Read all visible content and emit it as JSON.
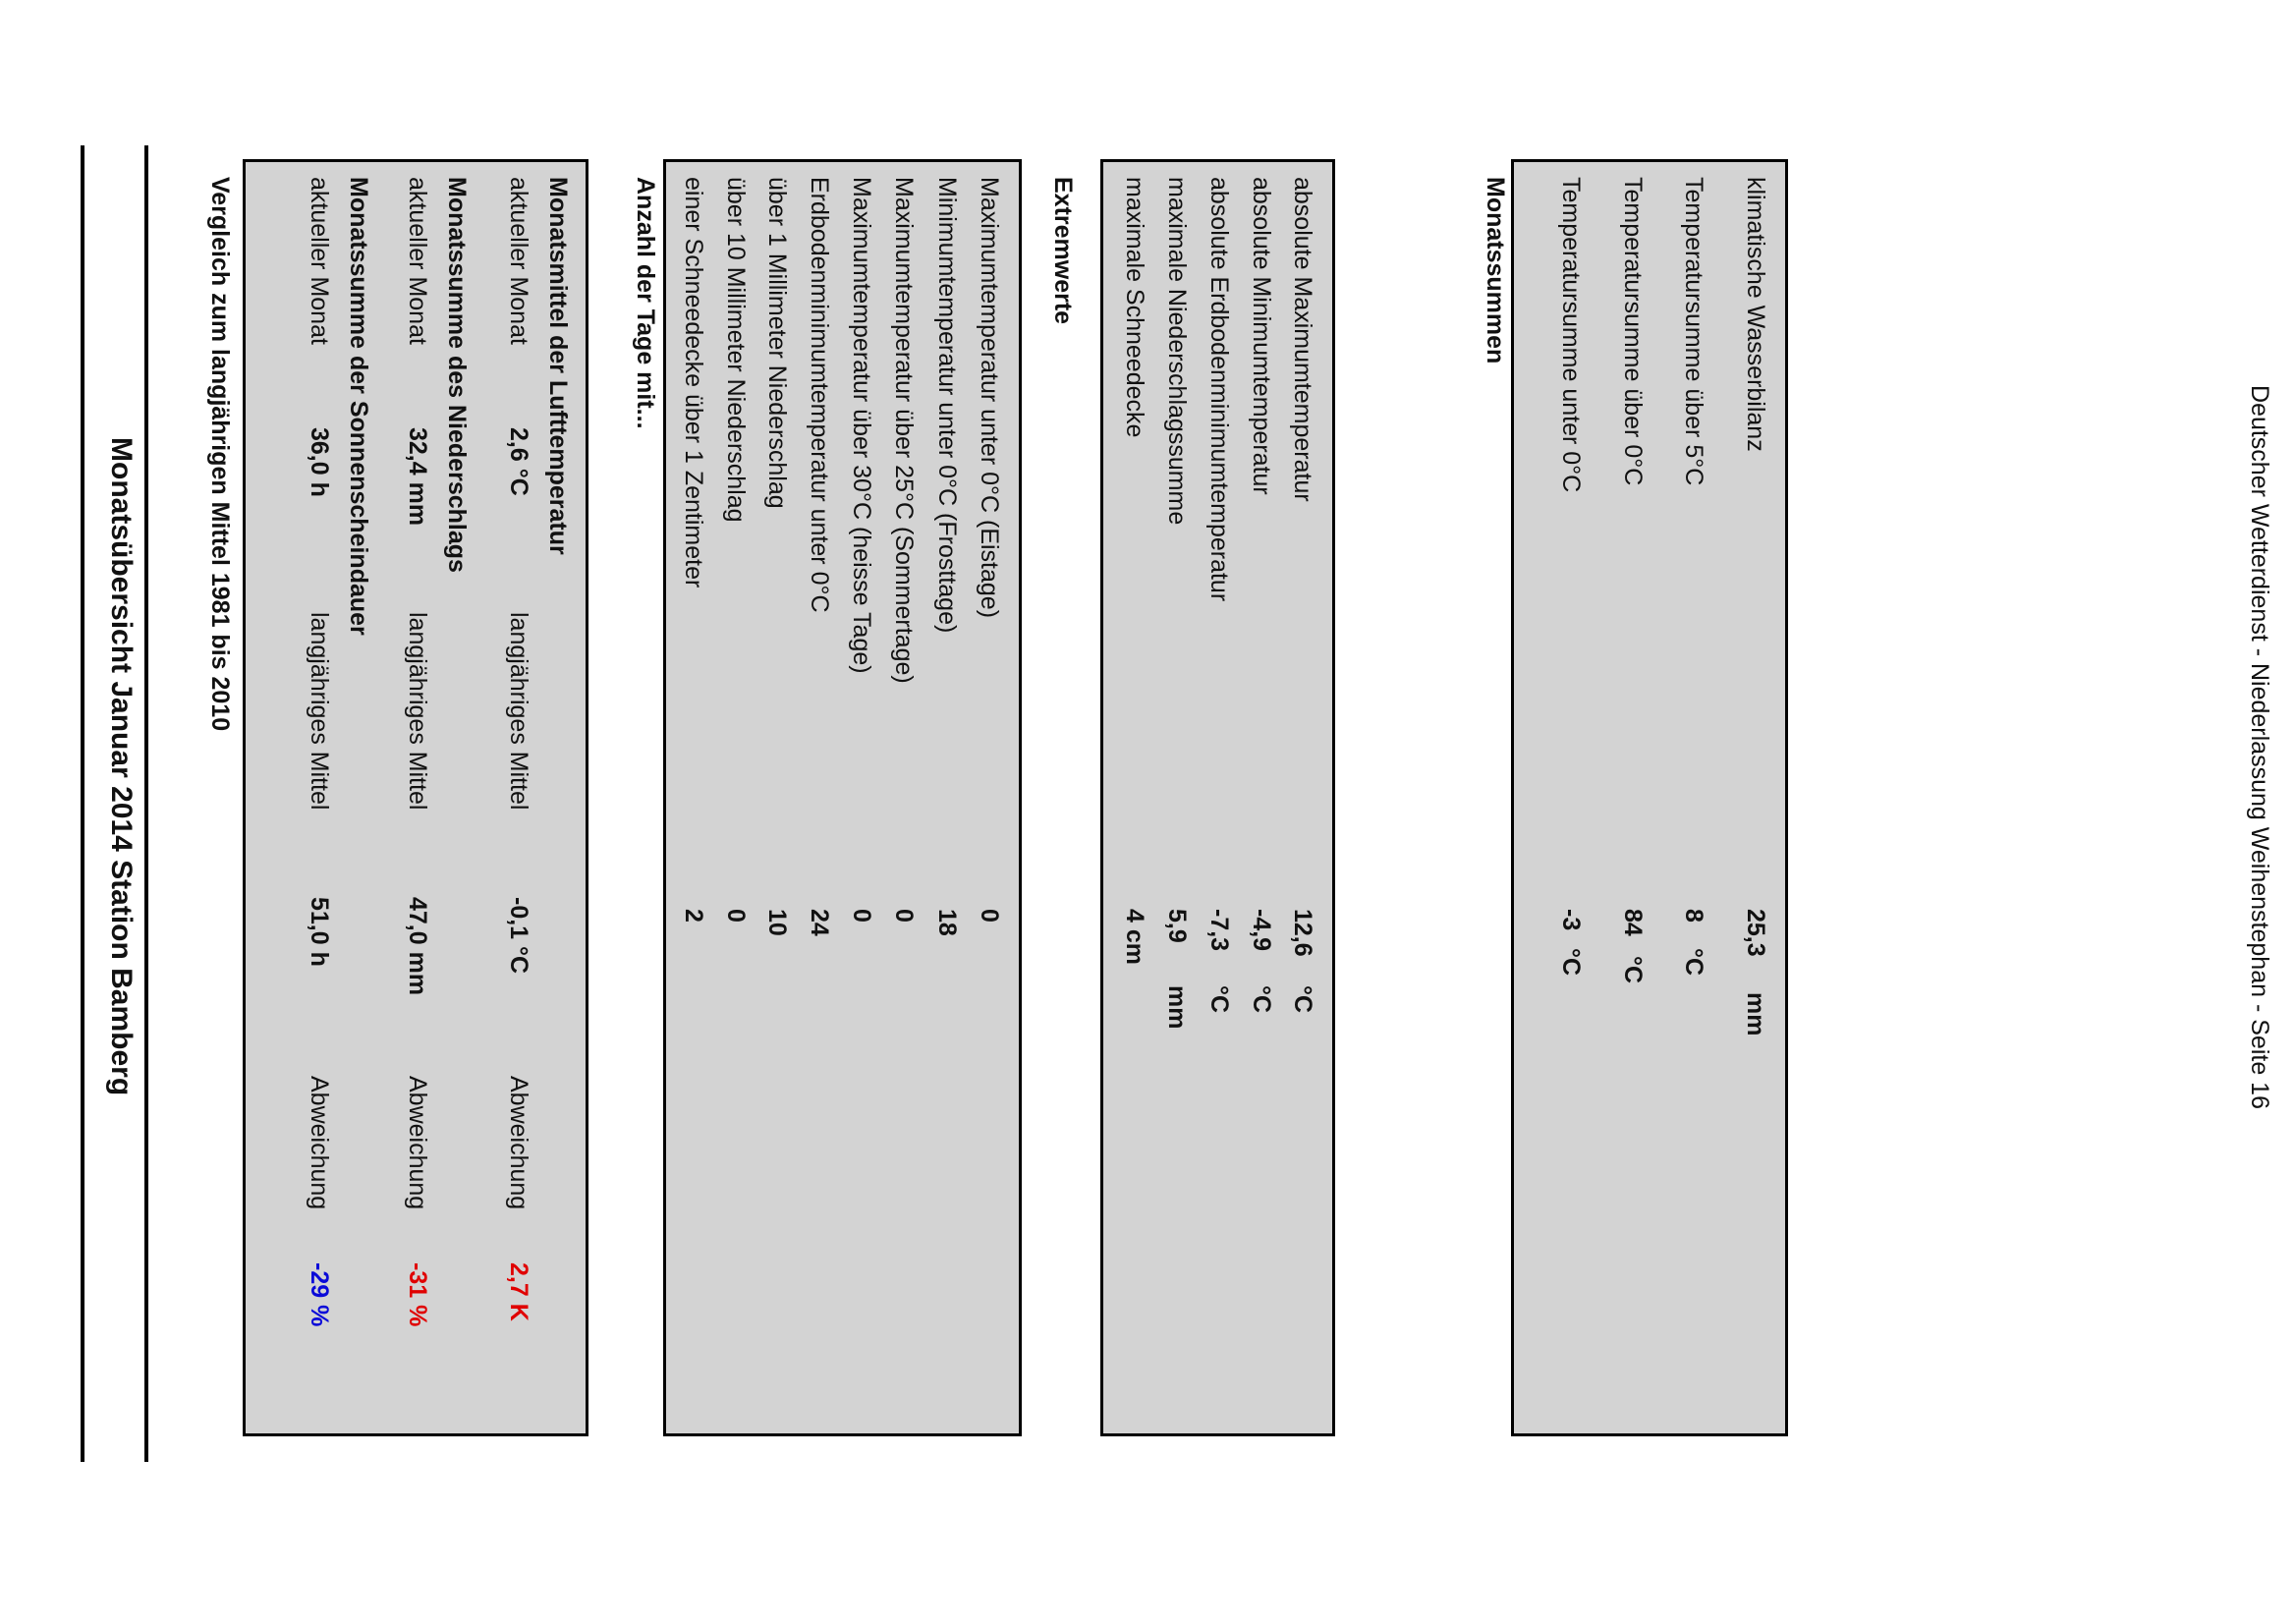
{
  "title": "Monatsübersicht Januar 2014 Station Bamberg",
  "subtitle": "Vergleich zum langjährigen Mittel 1981 bis 2010",
  "comparison": [
    {
      "heading": "Monatsmittel der Lufttemperatur",
      "current_label": "aktueller Monat",
      "current_value": "2,6 °C",
      "mean_label": "langjähriges Mittel",
      "mean_value": "-0,1 °C",
      "dev_label": "Abweichung",
      "dev_value": "2,7  K",
      "dev_color": "#e00000"
    },
    {
      "heading": "Monatssumme des Niederschlags",
      "current_label": "aktueller Monat",
      "current_value": "32,4 mm",
      "mean_label": "langjähriges Mittel",
      "mean_value": "47,0 mm",
      "dev_label": "Abweichung",
      "dev_value": "-31 %",
      "dev_color": "#e00000"
    },
    {
      "heading": "Monatssumme der Sonnenscheindauer",
      "current_label": "aktueller Monat",
      "current_value": "36,0 h",
      "mean_label": "langjähriges Mittel",
      "mean_value": "51,0 h",
      "dev_label": "Abweichung",
      "dev_value": "-29 %",
      "dev_color": "#0a0ad8"
    }
  ],
  "days": {
    "title": "Anzahl der Tage mit...",
    "rows": [
      {
        "label": "Maximumtemperatur unter 0°C (Eistage)",
        "value": "0"
      },
      {
        "label": "Minimumtemperatur unter 0°C (Frosttage)",
        "value": "18"
      },
      {
        "label": "Maximumtemperatur über 25°C (Sommertage)",
        "value": "0"
      },
      {
        "label": "Maximumtemperatur über 30°C (heisse Tage)",
        "value": "0"
      },
      {
        "label": "Erdbodenminimumtemperatur unter 0°C",
        "value": "24"
      },
      {
        "label": "über 1 Millimeter Niederschlag",
        "value": "10"
      },
      {
        "label": "über 10 Millimeter Niederschlag",
        "value": "0"
      },
      {
        "label": "einer Schneedecke über 1 Zentimeter",
        "value": "2"
      }
    ]
  },
  "extremes": {
    "title": "Extremwerte",
    "rows": [
      {
        "label": "absolute Maximumtemperatur",
        "value": "12,6",
        "unit": "°C"
      },
      {
        "label": "absolute Minimumtemperatur",
        "value": "-4,9",
        "unit": "°C"
      },
      {
        "label": "absolute Erdbodenminimumtemperatur",
        "value": "-7,3",
        "unit": "°C"
      },
      {
        "label": "maximale Niederschlagssumme",
        "value": "5,9",
        "unit": "mm"
      },
      {
        "label": "maximale Schneedecke",
        "value": "4 cm",
        "unit": ""
      }
    ]
  },
  "sums": {
    "title": "Monatssummen",
    "rows": [
      {
        "label": "klimatische Wasserbilanz",
        "value": "25,3",
        "unit": "mm"
      },
      {
        "label": "Temperatursumme über 5°C",
        "value": "8",
        "unit": "°C"
      },
      {
        "label": "Temperatursumme über 0°C",
        "value": "84",
        "unit": "°C"
      },
      {
        "label": "Temperatursumme unter 0°C",
        "value": "-3",
        "unit": "°C"
      }
    ]
  },
  "footer": "Deutscher Wetterdienst - Niederlassung Weihenstephan - Seite 16"
}
